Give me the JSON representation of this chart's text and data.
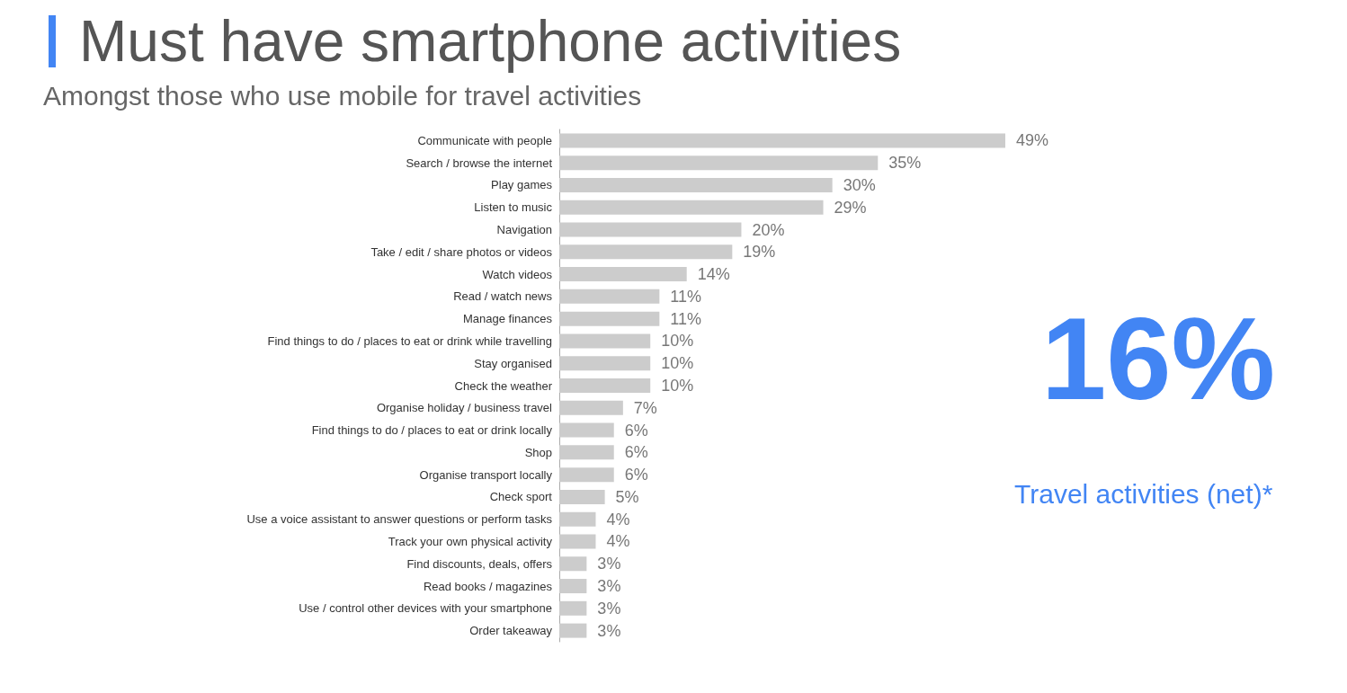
{
  "chart_data": {
    "type": "bar",
    "orientation": "horizontal",
    "title": "Must have smartphone activities",
    "subtitle": "Amongst those who use mobile for travel activities",
    "categories": [
      "Communicate with people",
      "Search / browse the internet",
      "Play games",
      "Listen to music",
      "Navigation",
      "Take / edit / share photos or videos",
      "Watch videos",
      "Read / watch news",
      "Manage finances",
      "Find things to do / places to eat or drink while travelling",
      "Stay organised",
      "Check the weather",
      "Organise holiday / business travel",
      "Find things to do / places to eat or drink locally",
      "Shop",
      "Organise transport locally",
      "Check sport",
      "Use a voice assistant to answer questions or perform tasks",
      "Track your own physical activity",
      "Find discounts, deals, offers",
      "Read books / magazines",
      "Use / control other devices with your smartphone",
      "Order takeaway"
    ],
    "values": [
      49,
      35,
      30,
      29,
      20,
      19,
      14,
      11,
      11,
      10,
      10,
      10,
      7,
      6,
      6,
      6,
      5,
      4,
      4,
      3,
      3,
      3,
      3
    ],
    "value_labels": [
      "49%",
      "35%",
      "30%",
      "29%",
      "20%",
      "19%",
      "14%",
      "11%",
      "11%",
      "10%",
      "10%",
      "10%",
      "7%",
      "6%",
      "6%",
      "6%",
      "5%",
      "4%",
      "4%",
      "3%",
      "3%",
      "3%",
      "3%"
    ],
    "color": "#cccccc",
    "annotations": [
      "16%",
      "Travel activities (net)*"
    ]
  }
}
